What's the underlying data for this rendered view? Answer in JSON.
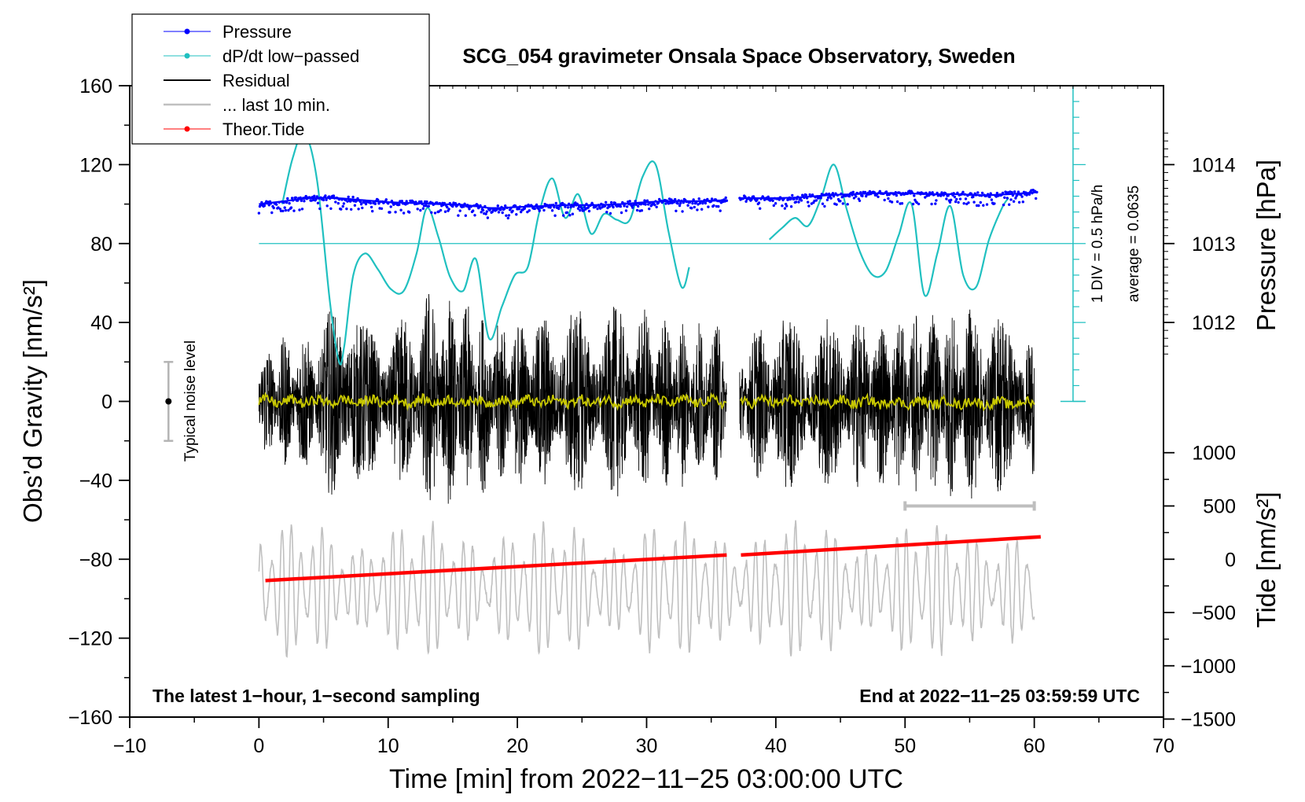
{
  "chart_data": {
    "type": "line",
    "title": "SCG_054 gravimeter Onsala Space Observatory, Sweden",
    "xlabel": "Time [min] from 2022−11−25 03:00:00 UTC",
    "ylabel_left": "Obs’d Gravity [nm/s²]",
    "ylabel_right_top": "Pressure [hPa]",
    "ylabel_right_bottom": "Tide [nm/s²]",
    "xlim": [
      -10,
      70
    ],
    "ylim_left": [
      -160,
      160
    ],
    "x_ticks": [
      "−10",
      "0",
      "10",
      "20",
      "30",
      "40",
      "50",
      "60",
      "70"
    ],
    "x_tick_values": [
      -10,
      0,
      10,
      20,
      30,
      40,
      50,
      60,
      70
    ],
    "y_ticks_left": [
      "160",
      "120",
      "80",
      "40",
      "0",
      "−40",
      "−80",
      "−120",
      "−160"
    ],
    "y_tick_values_left": [
      160,
      120,
      80,
      40,
      0,
      -40,
      -80,
      -120,
      -160
    ],
    "pressure_axis": {
      "ticks": [
        "1014",
        "1013",
        "1012"
      ],
      "tick_values": [
        1014,
        1013,
        1012
      ],
      "map": {
        "hPa_1013_at_gravity": 80,
        "nm_per_hPa": 40
      }
    },
    "tide_axis": {
      "ticks": [
        "1000",
        "500",
        "0",
        "−500",
        "−1000",
        "−1500"
      ],
      "tick_values": [
        1000,
        500,
        0,
        -500,
        -1000,
        -1500
      ],
      "map": {
        "tide_0_at_gravity": -80,
        "gravity_per_tide": 0.054
      }
    },
    "legend": {
      "placement": "top-left",
      "entries": [
        {
          "label": "Pressure",
          "color": "#0000ff",
          "marker": true
        },
        {
          "label": "dP/dt low−passed",
          "color": "#20c0c0",
          "marker": true
        },
        {
          "label": "Residual",
          "color": "#000000",
          "marker": false
        },
        {
          "label": "... last 10 min.",
          "color": "#c0c0c0",
          "marker": false
        },
        {
          "label": "Theor.Tide",
          "color": "#ff0000",
          "marker": true
        }
      ]
    },
    "series": [
      {
        "name": "Pressure",
        "color": "#0000ff",
        "unit": "gravity-scale",
        "segments": [
          {
            "x": [
              0,
              2,
              4,
              6,
              8,
              10,
              12,
              14,
              16,
              18,
              20,
              22,
              24,
              26,
              28,
              30,
              32,
              34,
              36.2
            ],
            "y": [
              100,
              101.5,
              103,
              103,
              102,
              101,
              100.5,
              100,
              99.5,
              98,
              98.5,
              99,
              99.5,
              99.5,
              100,
              101,
              101.5,
              101.5,
              102
            ]
          },
          {
            "x": [
              37.2,
              40,
              42,
              44,
              46,
              48,
              50,
              52,
              54,
              56,
              58,
              60.2
            ],
            "y": [
              103,
              103,
              103.5,
              104.5,
              105,
              105.5,
              105.5,
              105,
              105,
              104.5,
              105,
              106
            ]
          }
        ]
      },
      {
        "name": "dP/dt low-passed",
        "color": "#20c0c0",
        "unit": "gravity-scale",
        "segments": [
          {
            "x": [
              1.8,
              2.6,
              3.5,
              4.5,
              5.5,
              6.2,
              6.6,
              7.3,
              8.2,
              9.2,
              10.2,
              11.2,
              12.2,
              13.0,
              13.9,
              14.8,
              15.8,
              16.8,
              17.8,
              18.8,
              19.8,
              20.8,
              21.7,
              22.7,
              23.7,
              24.7,
              25.7,
              26.7,
              27.7,
              28.7,
              29.7,
              30.7,
              31.7,
              32.7,
              33.3
            ],
            "y": [
              100,
              123,
              136,
              112,
              50,
              20,
              28,
              64,
              75,
              67,
              57,
              56,
              75,
              98,
              83,
              63,
              56,
              72,
              32,
              48,
              64,
              68,
              96,
              113,
              93,
              105,
              85,
              95,
              92,
              92,
              114,
              120,
              86,
              58,
              68
            ]
          },
          {
            "x": [
              39.5,
              40.5,
              41.5,
              42.5,
              43.5,
              44.5,
              45.5,
              46.5,
              47.5,
              48.5,
              49.5,
              50.5,
              51.5,
              52.5,
              53.5,
              54.5,
              55.5,
              56.5,
              57.5,
              58.0
            ],
            "y": [
              82,
              88,
              93,
              89,
              103,
              120,
              97,
              76,
              64,
              66,
              84,
              100,
              54,
              75,
              99,
              64,
              58,
              82,
              98,
              103
            ]
          }
        ]
      },
      {
        "name": "dP/dt zero line",
        "color": "#20c0c0",
        "x": [
          0,
          63
        ],
        "y": [
          80,
          80
        ]
      },
      {
        "name": "Residual",
        "color": "#000000",
        "amplitude_envelope": {
          "x": [
            0,
            5,
            6.5,
            8,
            12,
            13,
            18,
            20,
            27,
            36.2,
            37.2,
            40,
            45,
            50,
            55,
            60
          ],
          "y": [
            30,
            40,
            65,
            40,
            45,
            60,
            45,
            45,
            50,
            40,
            35,
            45,
            45,
            45,
            50,
            45
          ]
        },
        "gap": [
          36.2,
          37.2
        ]
      },
      {
        "name": "Residual smoothed",
        "color": "#c8c800",
        "x": [
          0,
          36.2,
          37.2,
          60
        ],
        "y": [
          0,
          0,
          0,
          -1
        ]
      },
      {
        "name": "... last 10 min.",
        "color": "#c0c0c0",
        "unit": "tide-scale",
        "x_range": [
          0,
          60
        ],
        "center_tide": -280,
        "amplitude_tide": 550
      },
      {
        "name": "Theor.Tide",
        "color": "#ff0000",
        "unit": "tide-scale",
        "segments": [
          {
            "x": [
              0.5,
              36.2
            ],
            "y": [
              -200,
              40
            ]
          },
          {
            "x": [
              37.3,
              60.5
            ],
            "y": [
              40,
              210
            ]
          }
        ]
      }
    ],
    "annotations": {
      "noise_label": "Typical noise level",
      "noise_bar": {
        "x": -7,
        "y": 0,
        "half_range": 20
      },
      "last10_bar": {
        "x": [
          50,
          60
        ],
        "tide": 500
      },
      "div_label": "1 DIV = 0.5 hPa/h",
      "average_label": "average = 0.0635",
      "div_scale": {
        "x": 63,
        "y_range": [
          0,
          160
        ],
        "minor_step": 8
      },
      "bottom_left": "The latest 1−hour, 1−second sampling",
      "bottom_right": "End at 2022−11−25 03:59:59 UTC"
    }
  },
  "colors": {
    "pressure": "#0000ff",
    "dpdt": "#20c0c0",
    "residual": "#000000",
    "last10": "#c0c0c0",
    "tide": "#ff0000",
    "smoothed": "#c8c800"
  }
}
